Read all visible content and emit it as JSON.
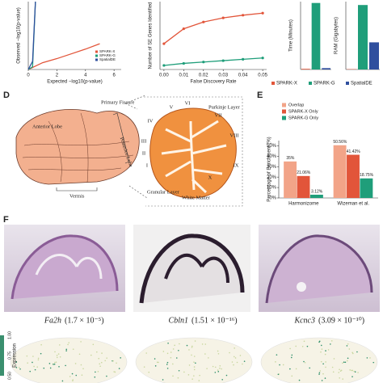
{
  "panels": {
    "d": "D",
    "e": "E",
    "f": "F"
  },
  "methods": [
    {
      "name": "SPARK-X",
      "color": "#e2553a"
    },
    {
      "name": "SPARK-G",
      "color": "#1f9e7a"
    },
    {
      "name": "SpatialDE",
      "color": "#2f4f9e"
    }
  ],
  "chart_data": [
    {
      "type": "line",
      "xlabel": "Expected −log10(p-value)",
      "ylabel": "Observed −log10(p-value)",
      "x": [
        0,
        0.3,
        0.5,
        1,
        2,
        3,
        4,
        5
      ],
      "xlim": [
        0,
        6.5
      ],
      "xticks": [
        0,
        2,
        4,
        6
      ],
      "ylim": [
        0,
        10
      ],
      "series": [
        {
          "name": "SPARK-X",
          "color": "#e2553a",
          "values": [
            0,
            0.3,
            0.5,
            1,
            1.6,
            2.3,
            3,
            3.8
          ]
        },
        {
          "name": "SPARK-G",
          "color": "#1f9e7a",
          "values": [
            0,
            0.4,
            10,
            null,
            null,
            null,
            null,
            null
          ]
        },
        {
          "name": "SpatialDE",
          "color": "#2f4f9e",
          "values": [
            0,
            1.2,
            10,
            null,
            null,
            null,
            null,
            null
          ]
        }
      ]
    },
    {
      "type": "line",
      "xlabel": "False Discovery Rate",
      "ylabel": "Number of SE Genes Identified",
      "markers": true,
      "x": [
        0,
        0.01,
        0.02,
        0.03,
        0.04,
        0.05
      ],
      "xlim": [
        -0.002,
        0.052
      ],
      "xticks": [
        {
          "value": 0,
          "label": "0.00"
        },
        0.01,
        0.02,
        0.03,
        0.04,
        0.05
      ],
      "ylim": [
        0,
        1000
      ],
      "series": [
        {
          "color": "#e2553a",
          "values": [
            380,
            600,
            700,
            760,
            800,
            830
          ]
        },
        {
          "color": "#1f9e7a",
          "values": [
            60,
            90,
            110,
            130,
            150,
            170
          ]
        }
      ]
    },
    {
      "type": "bar",
      "ylabel": "Time (Minutes)",
      "ylim": [
        0,
        100
      ],
      "values": [
        1,
        98,
        2
      ]
    },
    {
      "type": "bar",
      "ylabel": "RAM (Gigabytes)",
      "ylim": [
        0,
        100
      ],
      "values": [
        0.5,
        95,
        40
      ]
    },
    {
      "type": "groupbar",
      "ylabel": "Percentage of Enrichment (%)",
      "categories": [
        "Harmonizome",
        "Wizeman et al."
      ],
      "ylim": [
        0,
        55
      ],
      "yticks": [
        {
          "value": 0,
          "label": "0%"
        },
        {
          "value": 10,
          "label": "10%"
        },
        {
          "value": 20,
          "label": "20%"
        },
        {
          "value": 30,
          "label": "30%"
        },
        {
          "value": 40,
          "label": "40%"
        },
        {
          "value": 50,
          "label": "50%"
        }
      ],
      "series": [
        {
          "name": "Overlap",
          "color": "#f2a488",
          "values": [
            35,
            50.56
          ],
          "value_labels": [
            "35%",
            "50.56%"
          ]
        },
        {
          "name": "SPARK-X Only",
          "color": "#e2553a",
          "values": [
            21.06,
            41.42
          ],
          "value_labels": [
            "21.06%",
            "41.42%"
          ]
        },
        {
          "name": "SPARK-G Only",
          "color": "#1f9e7a",
          "values": [
            3.12,
            18.75
          ],
          "value_labels": [
            "3.12%",
            "18.75%"
          ]
        }
      ]
    }
  ],
  "diagram": {
    "anterior": "Anterior Lobe",
    "fissure": "Primary Fissure",
    "posterior": "Posterior Lobe",
    "vermis": "Vermis",
    "granular": "Granular Layer",
    "white": "White Matter",
    "purkinje": "Purkinje Layer",
    "lobules": [
      "I",
      "II",
      "III",
      "IV",
      "V",
      "VI",
      "VII",
      "VIII",
      "IX",
      "X"
    ]
  },
  "genes": [
    {
      "name": "Fa2h",
      "p": "(1.7 × 10⁻⁵)"
    },
    {
      "name": "Cbln1",
      "p": "(1.51 × 10⁻¹⁶)"
    },
    {
      "name": "Kcnc3",
      "p": "(3.09 × 10⁻¹⁰)"
    }
  ],
  "colorbar": {
    "label": "Expression",
    "ticks": [
      {
        "value": 0.5,
        "label": "0.50"
      },
      {
        "value": 0.75,
        "label": "0.75"
      },
      {
        "value": 1,
        "label": "1.00"
      }
    ]
  }
}
